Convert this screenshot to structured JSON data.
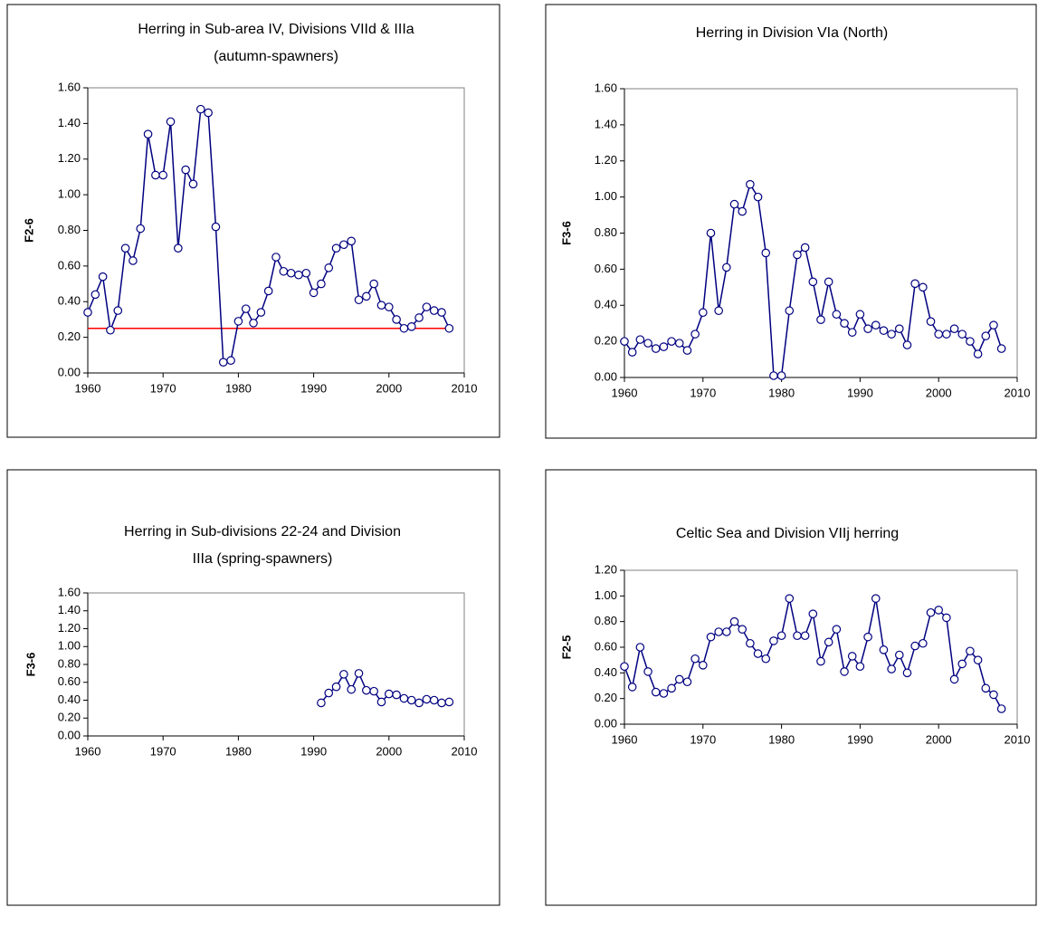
{
  "chart_data": [
    {
      "type": "line",
      "title": [
        "Herring in Sub-area IV, Divisions VIId & IIIa",
        "(autumn-spawners)"
      ],
      "ylabel": "F2-6",
      "x": [
        1960,
        1961,
        1962,
        1963,
        1964,
        1965,
        1966,
        1967,
        1968,
        1969,
        1970,
        1971,
        1972,
        1973,
        1974,
        1975,
        1976,
        1977,
        1978,
        1979,
        1980,
        1981,
        1982,
        1983,
        1984,
        1985,
        1986,
        1987,
        1988,
        1989,
        1990,
        1991,
        1992,
        1993,
        1994,
        1995,
        1996,
        1997,
        1998,
        1999,
        2000,
        2001,
        2002,
        2003,
        2004,
        2005,
        2006,
        2007,
        2008
      ],
      "values": [
        0.34,
        0.44,
        0.54,
        0.24,
        0.35,
        0.7,
        0.63,
        0.81,
        1.34,
        1.11,
        1.11,
        1.41,
        0.7,
        1.14,
        1.06,
        1.48,
        1.46,
        0.82,
        0.06,
        0.07,
        0.29,
        0.36,
        0.28,
        0.34,
        0.46,
        0.65,
        0.57,
        0.56,
        0.55,
        0.56,
        0.45,
        0.5,
        0.59,
        0.7,
        0.72,
        0.74,
        0.41,
        0.43,
        0.5,
        0.38,
        0.37,
        0.3,
        0.25,
        0.26,
        0.31,
        0.37,
        0.35,
        0.34,
        0.25
      ],
      "color": "#000080",
      "reference_lines": [
        {
          "value": 0.25,
          "color": "#ff0000",
          "x": [
            1960,
            2008
          ]
        }
      ],
      "xlim": [
        1960,
        2010
      ],
      "xticks": [
        1960,
        1970,
        1980,
        1990,
        2000,
        2010
      ],
      "ylim": [
        0,
        1.6
      ],
      "yticks": [
        {
          "value": 0,
          "label": "0.00"
        },
        {
          "value": 0.2,
          "label": "0.20"
        },
        {
          "value": 0.4,
          "label": "0.40"
        },
        {
          "value": 0.6,
          "label": "0.60"
        },
        {
          "value": 0.8,
          "label": "0.80"
        },
        {
          "value": 1.0,
          "label": "1.00"
        },
        {
          "value": 1.2,
          "label": "1.20"
        },
        {
          "value": 1.4,
          "label": "1.40"
        },
        {
          "value": 1.6,
          "label": "1.60"
        }
      ]
    },
    {
      "type": "line",
      "title": [
        "Herring in Division VIa (North)"
      ],
      "ylabel": "F3-6",
      "x": [
        1960,
        1961,
        1962,
        1963,
        1964,
        1965,
        1966,
        1967,
        1968,
        1969,
        1970,
        1971,
        1972,
        1973,
        1974,
        1975,
        1976,
        1977,
        1978,
        1979,
        1980,
        1981,
        1982,
        1983,
        1984,
        1985,
        1986,
        1987,
        1988,
        1989,
        1990,
        1991,
        1992,
        1993,
        1994,
        1995,
        1996,
        1997,
        1998,
        1999,
        2000,
        2001,
        2002,
        2003,
        2004,
        2005,
        2006,
        2007,
        2008
      ],
      "values": [
        0.2,
        0.14,
        0.21,
        0.19,
        0.16,
        0.17,
        0.2,
        0.19,
        0.15,
        0.24,
        0.36,
        0.8,
        0.37,
        0.61,
        0.96,
        0.92,
        1.07,
        1.0,
        0.69,
        0.01,
        0.01,
        0.37,
        0.68,
        0.72,
        0.53,
        0.32,
        0.53,
        0.35,
        0.3,
        0.25,
        0.35,
        0.27,
        0.29,
        0.26,
        0.24,
        0.27,
        0.18,
        0.52,
        0.5,
        0.31,
        0.24,
        0.24,
        0.27,
        0.24,
        0.2,
        0.13,
        0.23,
        0.29,
        0.16
      ],
      "color": "#000080",
      "xlim": [
        1960,
        2010
      ],
      "xticks": [
        1960,
        1970,
        1980,
        1990,
        2000,
        2010
      ],
      "ylim": [
        0,
        1.6
      ],
      "yticks": [
        {
          "value": 0,
          "label": "0.00"
        },
        {
          "value": 0.2,
          "label": "0.20"
        },
        {
          "value": 0.4,
          "label": "0.40"
        },
        {
          "value": 0.6,
          "label": "0.60"
        },
        {
          "value": 0.8,
          "label": "0.80"
        },
        {
          "value": 1.0,
          "label": "1.00"
        },
        {
          "value": 1.2,
          "label": "1.20"
        },
        {
          "value": 1.4,
          "label": "1.40"
        },
        {
          "value": 1.6,
          "label": "1.60"
        }
      ]
    },
    {
      "type": "line",
      "title": [
        "Herring in Sub-divisions 22-24 and Division",
        "IIIa (spring-spawners)"
      ],
      "ylabel": "F3-6",
      "x": [
        1991,
        1992,
        1993,
        1994,
        1995,
        1996,
        1997,
        1998,
        1999,
        2000,
        2001,
        2002,
        2003,
        2004,
        2005,
        2006,
        2007,
        2008
      ],
      "values": [
        0.37,
        0.48,
        0.55,
        0.69,
        0.52,
        0.7,
        0.51,
        0.5,
        0.38,
        0.47,
        0.46,
        0.42,
        0.4,
        0.37,
        0.41,
        0.4,
        0.37,
        0.38
      ],
      "color": "#000080",
      "xlim": [
        1960,
        2010
      ],
      "xticks": [
        1960,
        1970,
        1980,
        1990,
        2000,
        2010
      ],
      "ylim": [
        0,
        1.6
      ],
      "yticks": [
        {
          "value": 0,
          "label": "0.00"
        },
        {
          "value": 0.2,
          "label": "0.20"
        },
        {
          "value": 0.4,
          "label": "0.40"
        },
        {
          "value": 0.6,
          "label": "0.60"
        },
        {
          "value": 0.8,
          "label": "0.80"
        },
        {
          "value": 1.0,
          "label": "1.00"
        },
        {
          "value": 1.2,
          "label": "1.20"
        },
        {
          "value": 1.4,
          "label": "1.40"
        },
        {
          "value": 1.6,
          "label": "1.60"
        }
      ]
    },
    {
      "type": "line",
      "title": [
        "Celtic Sea and Division VIIj herring"
      ],
      "ylabel": "F2-5",
      "x": [
        1960,
        1961,
        1962,
        1963,
        1964,
        1965,
        1966,
        1967,
        1968,
        1969,
        1970,
        1971,
        1972,
        1973,
        1974,
        1975,
        1976,
        1977,
        1978,
        1979,
        1980,
        1981,
        1982,
        1983,
        1984,
        1985,
        1986,
        1987,
        1988,
        1989,
        1990,
        1991,
        1992,
        1993,
        1994,
        1995,
        1996,
        1997,
        1998,
        1999,
        2000,
        2001,
        2002,
        2003,
        2004,
        2005,
        2006,
        2007,
        2008
      ],
      "values": [
        0.45,
        0.29,
        0.6,
        0.41,
        0.25,
        0.24,
        0.28,
        0.35,
        0.33,
        0.51,
        0.46,
        0.68,
        0.72,
        0.72,
        0.8,
        0.74,
        0.63,
        0.55,
        0.51,
        0.65,
        0.69,
        0.98,
        0.69,
        0.69,
        0.86,
        0.49,
        0.64,
        0.74,
        0.41,
        0.53,
        0.45,
        0.68,
        0.98,
        0.58,
        0.43,
        0.54,
        0.4,
        0.61,
        0.63,
        0.87,
        0.89,
        0.83,
        0.35,
        0.47,
        0.57,
        0.5,
        0.28,
        0.23,
        0.12
      ],
      "color": "#000080",
      "xlim": [
        1960,
        2010
      ],
      "xticks": [
        1960,
        1970,
        1980,
        1990,
        2000,
        2010
      ],
      "ylim": [
        0,
        1.2
      ],
      "yticks": [
        {
          "value": 0,
          "label": "0.00"
        },
        {
          "value": 0.2,
          "label": "0.20"
        },
        {
          "value": 0.4,
          "label": "0.40"
        },
        {
          "value": 0.6,
          "label": "0.60"
        },
        {
          "value": 0.8,
          "label": "0.80"
        },
        {
          "value": 1.0,
          "label": "1.00"
        },
        {
          "value": 1.2,
          "label": "1.20"
        }
      ]
    }
  ]
}
